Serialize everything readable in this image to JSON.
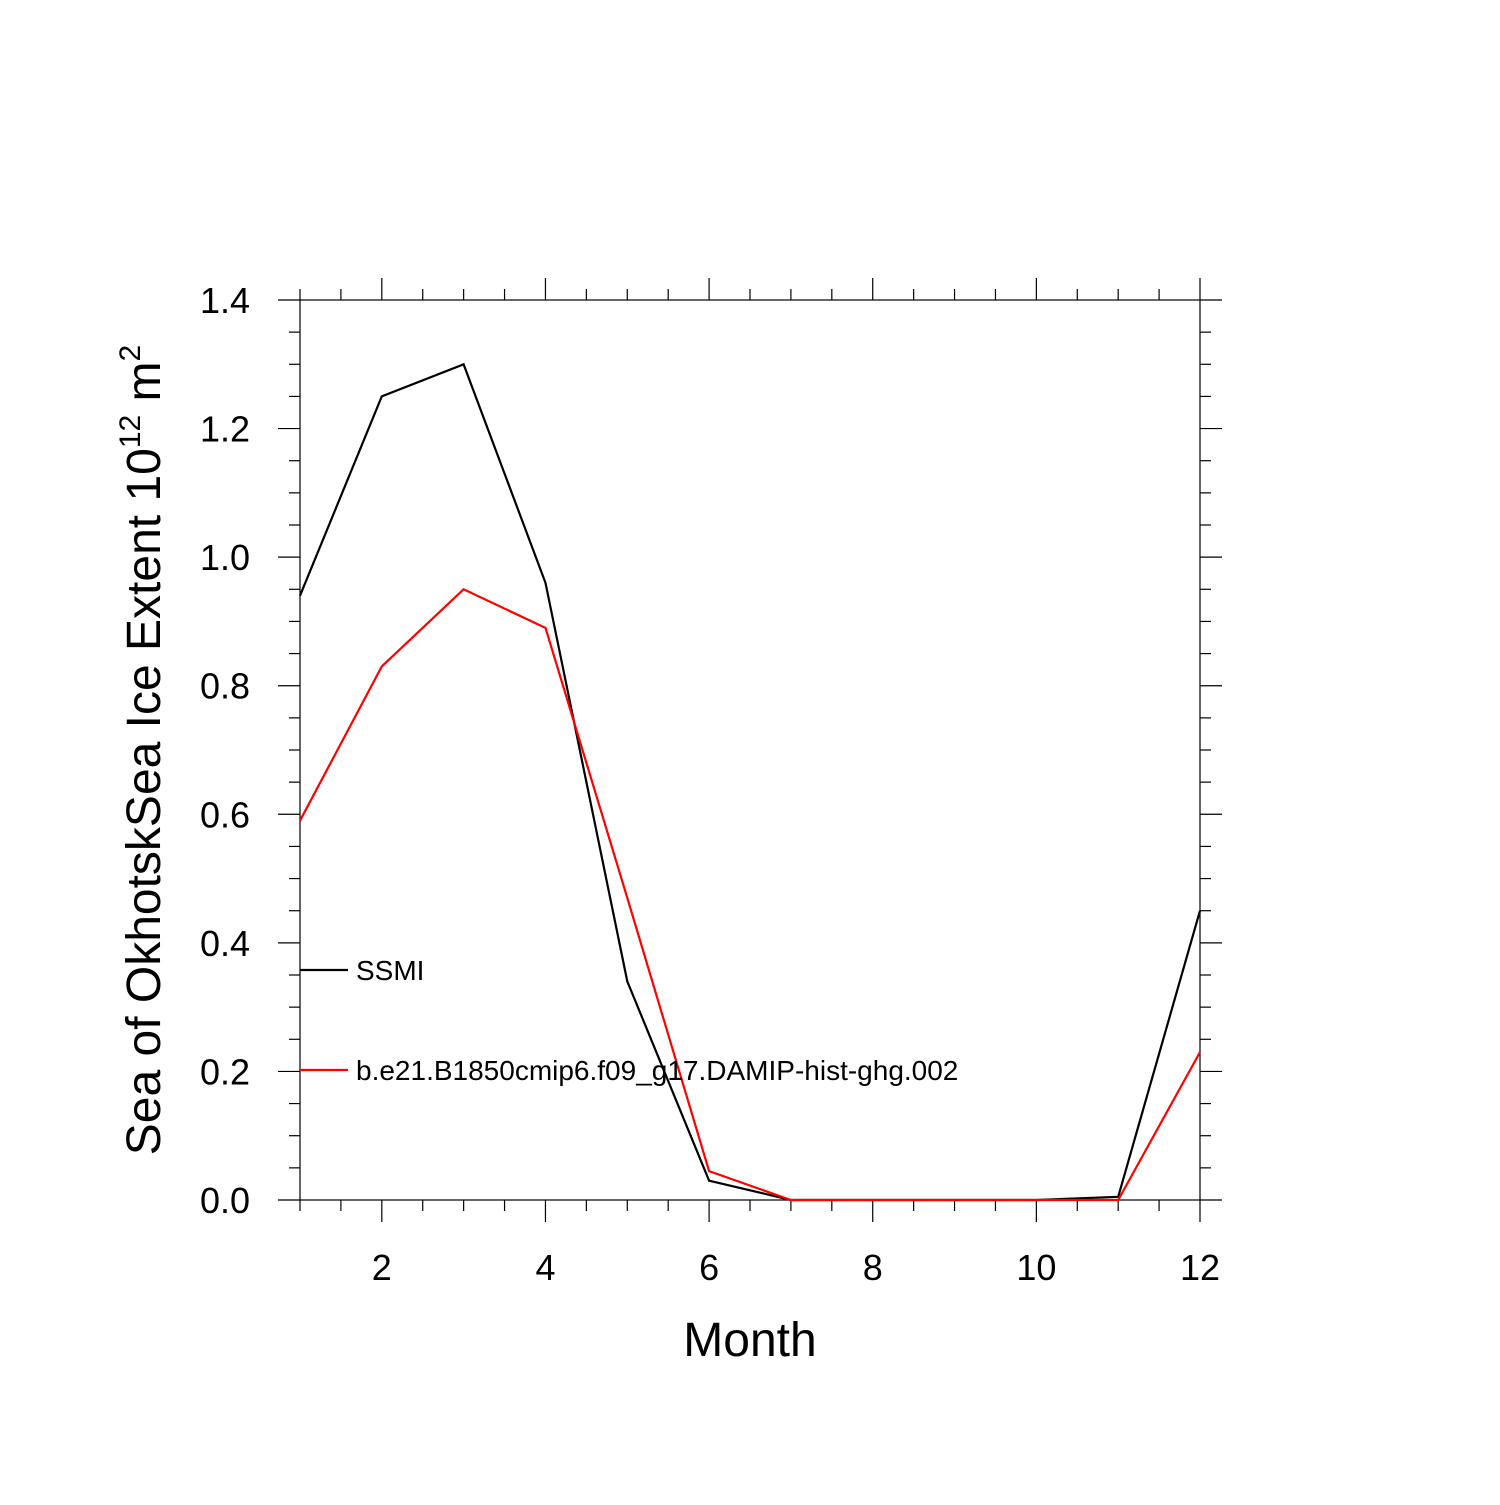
{
  "chart_data": {
    "type": "line",
    "title": "",
    "xlabel": "Month",
    "ylabel": {
      "text": "Sea of OkhotskSea Ice Extent 10",
      "superscript": "12",
      "unit_text": " m",
      "unit_superscript": "2"
    },
    "xlim": [
      1,
      12
    ],
    "ylim": [
      0,
      1.4
    ],
    "x_ticks": [
      2,
      4,
      6,
      8,
      10,
      12
    ],
    "x_tick_labels": [
      "2",
      "4",
      "6",
      "8",
      "10",
      "12"
    ],
    "y_ticks": [
      0,
      0.2,
      0.4,
      0.6,
      0.8,
      1.0,
      1.2,
      1.4
    ],
    "y_tick_labels": [
      "0.0",
      "0.2",
      "0.4",
      "0.6",
      "0.8",
      "1.0",
      "1.2",
      "1.4"
    ],
    "grid": false,
    "legend_position": "inside-left",
    "x": [
      1,
      2,
      3,
      4,
      5,
      6,
      7,
      8,
      9,
      10,
      11,
      12
    ],
    "series": [
      {
        "name": "SSMI",
        "color": "#000000",
        "values": [
          0.94,
          1.25,
          1.3,
          0.96,
          0.34,
          0.03,
          0.0,
          0.0,
          0.0,
          0.0,
          0.005,
          0.45
        ]
      },
      {
        "name": "b.e21.B1850cmip6.f09_g17.DAMIP-hist-ghg.002",
        "color": "#ff0000",
        "values": [
          0.59,
          0.83,
          0.95,
          0.89,
          0.47,
          0.045,
          0.0,
          0.0,
          0.0,
          0.0,
          0.0,
          0.23
        ]
      }
    ]
  }
}
